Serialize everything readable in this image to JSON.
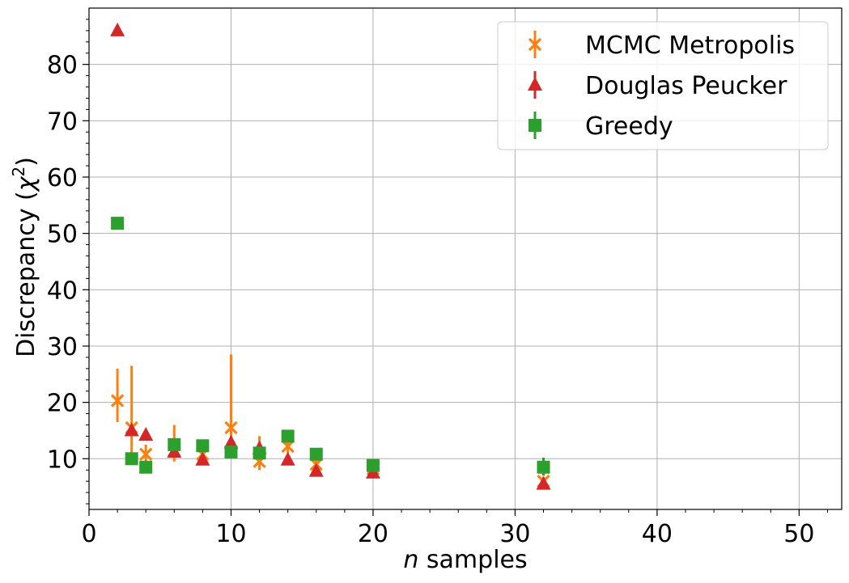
{
  "chart_data": {
    "type": "scatter",
    "xlabel_var": "n",
    "xlabel_rest": " samples",
    "ylabel_main": "Discrepancy (",
    "ylabel_chi": "χ",
    "ylabel_sup": "2",
    "ylabel_end": ")",
    "xlim": [
      0,
      53
    ],
    "ylim": [
      1,
      90
    ],
    "xticks": [
      0,
      10,
      20,
      30,
      40,
      50
    ],
    "xtick_labels": [
      "0",
      "10",
      "20",
      "30",
      "40",
      "50"
    ],
    "yticks": [
      10,
      20,
      30,
      40,
      50,
      60,
      70,
      80
    ],
    "ytick_labels": [
      "10",
      "20",
      "30",
      "40",
      "50",
      "60",
      "70",
      "80"
    ],
    "grid": true,
    "legend_position": "top-right",
    "series": [
      {
        "name": "MCMC Metropolis",
        "marker": "x",
        "color": "#ff7f0e",
        "points": [
          {
            "x": 2,
            "y": 20.3,
            "ylo": 16.5,
            "yhi": 26.0
          },
          {
            "x": 3,
            "y": 15.5,
            "ylo": 9.5,
            "yhi": 26.5
          },
          {
            "x": 4,
            "y": 10.8,
            "ylo": 9.0,
            "yhi": 12.5
          },
          {
            "x": 6,
            "y": 11.5,
            "ylo": 9.5,
            "yhi": 16.0
          },
          {
            "x": 8,
            "y": 10.8,
            "ylo": 10.0,
            "yhi": 12.0
          },
          {
            "x": 10,
            "y": 15.5,
            "ylo": 11.5,
            "yhi": 28.5
          },
          {
            "x": 12,
            "y": 9.5,
            "ylo": 8.0,
            "yhi": 14.0
          },
          {
            "x": 14,
            "y": 12.2,
            "ylo": 11.0,
            "yhi": 14.0
          },
          {
            "x": 16,
            "y": 9.0,
            "ylo": 8.0,
            "yhi": 10.5
          },
          {
            "x": 20,
            "y": 8.2,
            "ylo": 7.5,
            "yhi": 9.0
          },
          {
            "x": 32,
            "y": 6.0,
            "ylo": 5.5,
            "yhi": 6.8
          }
        ]
      },
      {
        "name": "Douglas Peucker",
        "marker": "triangle",
        "color": "#d62728",
        "points": [
          {
            "x": 2,
            "y": 86.0
          },
          {
            "x": 3,
            "y": 15.0
          },
          {
            "x": 4,
            "y": 14.2
          },
          {
            "x": 6,
            "y": 11.2
          },
          {
            "x": 8,
            "y": 9.8
          },
          {
            "x": 10,
            "y": 12.8
          },
          {
            "x": 12,
            "y": 11.8
          },
          {
            "x": 14,
            "y": 9.8
          },
          {
            "x": 16,
            "y": 7.8
          },
          {
            "x": 20,
            "y": 7.5
          },
          {
            "x": 32,
            "y": 5.5
          }
        ]
      },
      {
        "name": "Greedy",
        "marker": "square",
        "color": "#2ca02c",
        "points": [
          {
            "x": 2,
            "y": 51.8
          },
          {
            "x": 3,
            "y": 10.0
          },
          {
            "x": 4,
            "y": 8.5
          },
          {
            "x": 6,
            "y": 12.5
          },
          {
            "x": 8,
            "y": 12.3
          },
          {
            "x": 10,
            "y": 11.2
          },
          {
            "x": 12,
            "y": 11.0
          },
          {
            "x": 14,
            "y": 14.0
          },
          {
            "x": 16,
            "y": 10.8
          },
          {
            "x": 20,
            "y": 8.8
          },
          {
            "x": 32,
            "y": 8.5,
            "ylo": 7.0,
            "yhi": 10.2
          }
        ]
      }
    ]
  }
}
